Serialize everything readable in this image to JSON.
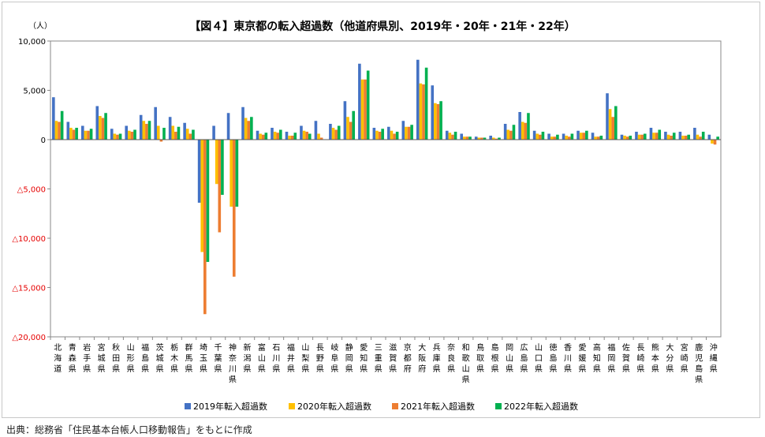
{
  "chart_data": {
    "type": "bar",
    "title": "【図４】東京都の転入超過数（他道府県別、2019年・20年・21年・22年）",
    "ylabel": "（人）",
    "ylim": [
      -20000,
      10000
    ],
    "yticks": [
      10000,
      5000,
      0,
      -5000,
      -10000,
      -15000,
      -20000
    ],
    "ytick_labels": [
      "10,000",
      "5,000",
      "0",
      "△5,000",
      "△10,000",
      "△15,000",
      "△20,000"
    ],
    "negative_tick_color": "#e60000",
    "grid": false,
    "legend_position": "bottom",
    "categories": [
      "北海道",
      "青森県",
      "岩手県",
      "宮城県",
      "秋田県",
      "山形県",
      "福島県",
      "茨城県",
      "栃木県",
      "群馬県",
      "埼玉県",
      "千葉県",
      "神奈川県",
      "新潟県",
      "富山県",
      "石川県",
      "福井県",
      "山梨県",
      "長野県",
      "岐阜県",
      "静岡県",
      "愛知県",
      "三重県",
      "滋賀県",
      "京都府",
      "大阪府",
      "兵庫県",
      "奈良県",
      "和歌山県",
      "鳥取県",
      "島根県",
      "岡山県",
      "広島県",
      "山口県",
      "徳島県",
      "香川県",
      "愛媛県",
      "高知県",
      "福岡県",
      "佐賀県",
      "長崎県",
      "熊本県",
      "大分県",
      "宮崎県",
      "鹿児島県",
      "沖縄県"
    ],
    "series": [
      {
        "name": "2019年転入超過数",
        "color": "#4472c4",
        "values": [
          4300,
          1800,
          1400,
          3400,
          1100,
          1400,
          2500,
          3300,
          2300,
          1700,
          -6400,
          1400,
          2700,
          3300,
          900,
          1200,
          800,
          1400,
          1900,
          1600,
          3900,
          7700,
          1200,
          1300,
          1900,
          8100,
          5500,
          900,
          600,
          300,
          400,
          1600,
          2800,
          900,
          600,
          600,
          900,
          700,
          4700,
          500,
          800,
          1200,
          800,
          800,
          1200,
          500
        ]
      },
      {
        "name": "2020年転入超過数",
        "color": "#ffc000",
        "values": [
          1900,
          1200,
          900,
          2400,
          600,
          900,
          1900,
          1400,
          1400,
          1100,
          -11400,
          -4500,
          -6800,
          2200,
          600,
          800,
          400,
          900,
          600,
          1200,
          2300,
          6100,
          900,
          900,
          1300,
          5700,
          3700,
          700,
          300,
          200,
          200,
          1000,
          1800,
          600,
          300,
          400,
          700,
          300,
          3100,
          400,
          500,
          700,
          500,
          400,
          500,
          -400
        ]
      },
      {
        "name": "2021年転入超過数",
        "color": "#ed7d31",
        "values": [
          1800,
          1000,
          900,
          2200,
          500,
          800,
          1600,
          -200,
          800,
          600,
          -17700,
          -9400,
          -13900,
          1900,
          500,
          700,
          400,
          800,
          200,
          1000,
          1800,
          6100,
          800,
          600,
          1300,
          5600,
          3600,
          500,
          300,
          200,
          100,
          900,
          1700,
          500,
          300,
          300,
          700,
          300,
          2300,
          300,
          500,
          700,
          400,
          400,
          300,
          -500
        ]
      },
      {
        "name": "2022年転入超過数",
        "color": "#00b050",
        "values": [
          2900,
          1200,
          1100,
          2700,
          600,
          1000,
          1900,
          1200,
          1300,
          1000,
          -12400,
          -5600,
          -6800,
          2300,
          700,
          1000,
          700,
          600,
          0,
          1400,
          2900,
          7000,
          1100,
          800,
          1500,
          7300,
          3900,
          800,
          300,
          200,
          200,
          1500,
          2700,
          800,
          500,
          600,
          900,
          400,
          3400,
          400,
          600,
          1000,
          700,
          500,
          800,
          300
        ]
      }
    ]
  },
  "source_note": "出典：総務省「住民基本台帳人口移動報告」をもとに作成"
}
